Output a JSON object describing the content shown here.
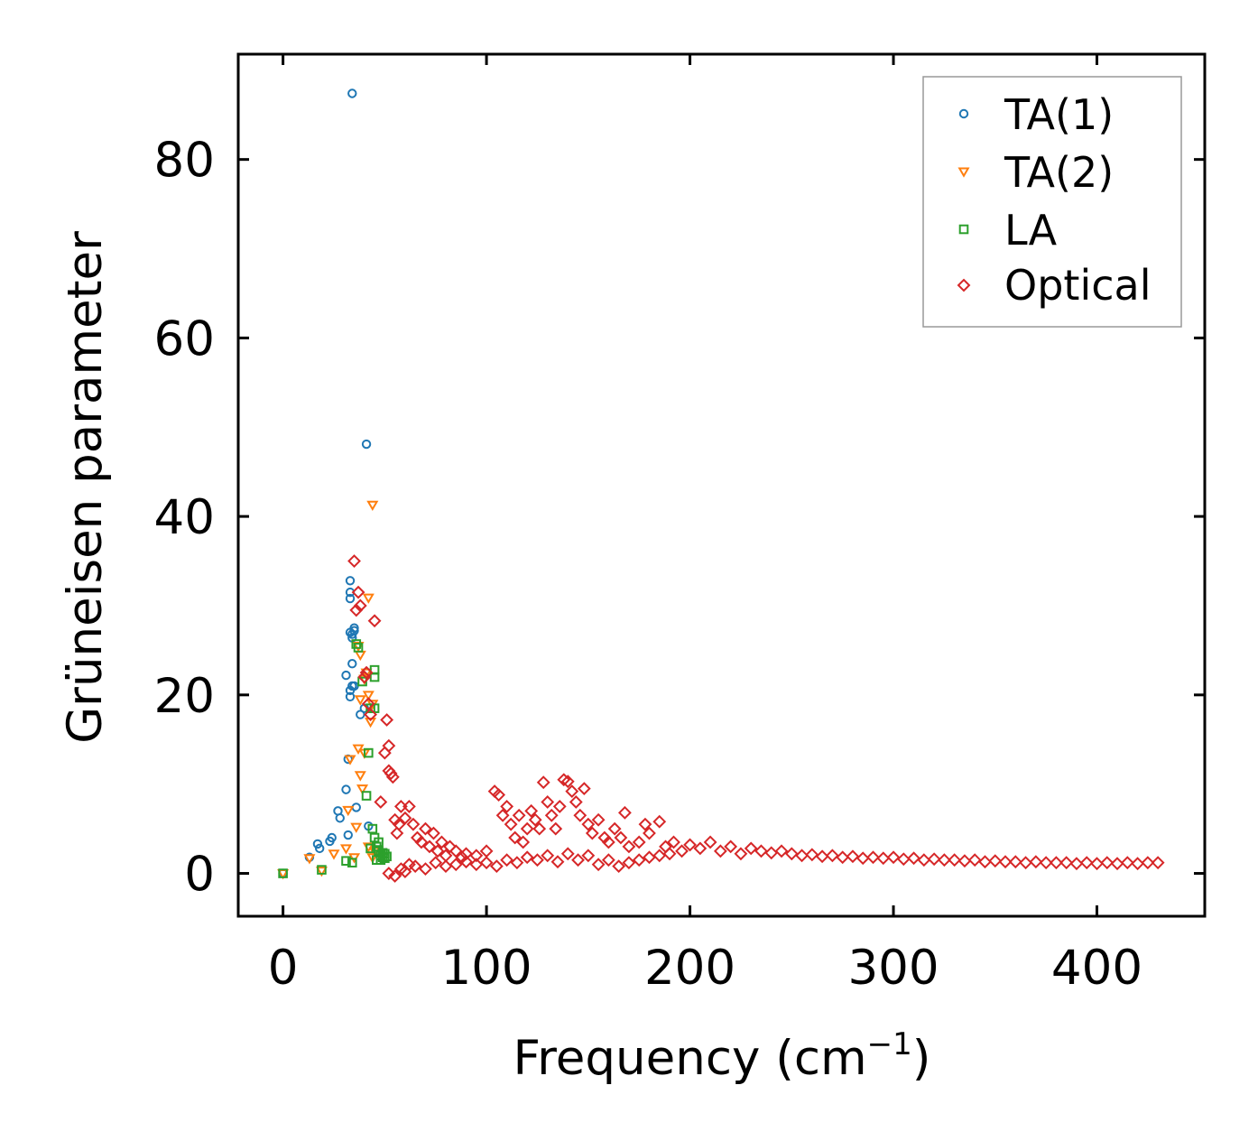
{
  "chart_data": {
    "type": "scatter",
    "title": "",
    "xlabel": "Frequency (cm",
    "xlabel_sup": "−1",
    "xlabel_close": ")",
    "ylabel": "Grüneisen parameter",
    "xlim": [
      -22,
      453
    ],
    "ylim": [
      -4.8,
      91.8
    ],
    "xticks": [
      0,
      100,
      200,
      300,
      400
    ],
    "yticks": [
      0,
      20,
      40,
      60,
      80
    ],
    "xtick_labels": [
      "0",
      "100",
      "200",
      "300",
      "400"
    ],
    "ytick_labels": [
      "0",
      "20",
      "40",
      "60",
      "80"
    ],
    "legend_position": "top-right",
    "legend": [
      "TA(1)",
      "TA(2)",
      "LA",
      "Optical"
    ],
    "series": [
      {
        "name": "TA(1)",
        "marker": "circle",
        "color": "#1f77b4",
        "points": [
          [
            0,
            0
          ],
          [
            13,
            1.8
          ],
          [
            17,
            3.3
          ],
          [
            18,
            2.8
          ],
          [
            23,
            3.6
          ],
          [
            24,
            4
          ],
          [
            27,
            7
          ],
          [
            28,
            6.2
          ],
          [
            31,
            9.4
          ],
          [
            32,
            4.3
          ],
          [
            32,
            12.8
          ],
          [
            31,
            22.2
          ],
          [
            33,
            19.8
          ],
          [
            33,
            20.5
          ],
          [
            34,
            21
          ],
          [
            34,
            23.5
          ],
          [
            33,
            27
          ],
          [
            34,
            26.8
          ],
          [
            35,
            27.2
          ],
          [
            35,
            27.5
          ],
          [
            35,
            21
          ],
          [
            36,
            7.4
          ],
          [
            33,
            30.8
          ],
          [
            33,
            31.5
          ],
          [
            33,
            32.8
          ],
          [
            34,
            87.4
          ],
          [
            41,
            48.1
          ],
          [
            38,
            17.8
          ],
          [
            40,
            18.5
          ],
          [
            42,
            5.3
          ],
          [
            34,
            26.4
          ]
        ]
      },
      {
        "name": "TA(2)",
        "marker": "triangle",
        "color": "#ff7f0e",
        "points": [
          [
            0,
            0
          ],
          [
            13,
            1.7
          ],
          [
            19,
            0.3
          ],
          [
            25,
            2.2
          ],
          [
            31,
            2.8
          ],
          [
            32,
            7.1
          ],
          [
            33,
            12.8
          ],
          [
            35,
            1.8
          ],
          [
            36,
            5.2
          ],
          [
            37,
            14
          ],
          [
            38,
            11
          ],
          [
            39,
            9.5
          ],
          [
            40,
            13.5
          ],
          [
            38,
            19.5
          ],
          [
            40,
            21.8
          ],
          [
            41,
            22.5
          ],
          [
            42,
            20
          ],
          [
            43,
            17
          ],
          [
            44,
            19
          ],
          [
            44,
            41.3
          ],
          [
            42,
            30.9
          ],
          [
            37,
            25.5
          ],
          [
            38,
            24.5
          ],
          [
            42,
            3
          ],
          [
            44,
            1.8
          ],
          [
            45,
            2.5
          ]
        ]
      },
      {
        "name": "LA",
        "marker": "square",
        "color": "#2ca02c",
        "points": [
          [
            0,
            0
          ],
          [
            19,
            0.4
          ],
          [
            31,
            1.4
          ],
          [
            34,
            1.2
          ],
          [
            36,
            25.7
          ],
          [
            37,
            25.3
          ],
          [
            39,
            21.5
          ],
          [
            41,
            8.7
          ],
          [
            42,
            13.5
          ],
          [
            43,
            18.5
          ],
          [
            45,
            22.8
          ],
          [
            45,
            22
          ],
          [
            45,
            18.5
          ],
          [
            44,
            5
          ],
          [
            45,
            4
          ],
          [
            46,
            3
          ],
          [
            46,
            1.5
          ],
          [
            47,
            2.5
          ],
          [
            47,
            3.5
          ],
          [
            48,
            2
          ],
          [
            48,
            1.5
          ],
          [
            49,
            1.8
          ],
          [
            49,
            2.3
          ],
          [
            50,
            2.2
          ],
          [
            50,
            1.7
          ],
          [
            51,
            1.9
          ],
          [
            43,
            2.8
          ]
        ]
      },
      {
        "name": "Optical",
        "marker": "diamond",
        "color": "#d62728",
        "points": [
          [
            35,
            35
          ],
          [
            36,
            29.5
          ],
          [
            37,
            31.5
          ],
          [
            38,
            30
          ],
          [
            40,
            22
          ],
          [
            41,
            22.5
          ],
          [
            42,
            19
          ],
          [
            43,
            17.8
          ],
          [
            45,
            28.3
          ],
          [
            48,
            8
          ],
          [
            50,
            13.5
          ],
          [
            51,
            17.2
          ],
          [
            52,
            14.3
          ],
          [
            52,
            11.5
          ],
          [
            53,
            11.2
          ],
          [
            54,
            10.8
          ],
          [
            55,
            6
          ],
          [
            56,
            4.5
          ],
          [
            57,
            5.5
          ],
          [
            58,
            7.5
          ],
          [
            60,
            6.2
          ],
          [
            62,
            7.5
          ],
          [
            64,
            5.5
          ],
          [
            66,
            4
          ],
          [
            68,
            3.5
          ],
          [
            70,
            5
          ],
          [
            72,
            3
          ],
          [
            74,
            4.5
          ],
          [
            76,
            2.5
          ],
          [
            78,
            3.5
          ],
          [
            80,
            2
          ],
          [
            82,
            3
          ],
          [
            85,
            2.5
          ],
          [
            88,
            1.8
          ],
          [
            90,
            2.2
          ],
          [
            95,
            2
          ],
          [
            100,
            2.5
          ],
          [
            104,
            9.2
          ],
          [
            106,
            8.8
          ],
          [
            108,
            6.5
          ],
          [
            110,
            7.5
          ],
          [
            112,
            5.5
          ],
          [
            114,
            4
          ],
          [
            116,
            6.5
          ],
          [
            118,
            3.5
          ],
          [
            120,
            5
          ],
          [
            122,
            7
          ],
          [
            124,
            6
          ],
          [
            126,
            5
          ],
          [
            128,
            10.2
          ],
          [
            130,
            8
          ],
          [
            132,
            6.5
          ],
          [
            134,
            5
          ],
          [
            136,
            7.5
          ],
          [
            138,
            10.5
          ],
          [
            140,
            10.3
          ],
          [
            142,
            9.2
          ],
          [
            144,
            8
          ],
          [
            146,
            6.5
          ],
          [
            148,
            9.5
          ],
          [
            150,
            5.5
          ],
          [
            152,
            4.5
          ],
          [
            155,
            6
          ],
          [
            158,
            4
          ],
          [
            160,
            3.5
          ],
          [
            163,
            5
          ],
          [
            166,
            4
          ],
          [
            168,
            6.8
          ],
          [
            170,
            3
          ],
          [
            175,
            3.5
          ],
          [
            178,
            5.5
          ],
          [
            180,
            4.5
          ],
          [
            185,
            5.8
          ],
          [
            188,
            3
          ],
          [
            192,
            3.5
          ],
          [
            196,
            2.5
          ],
          [
            200,
            3.2
          ],
          [
            205,
            2.8
          ],
          [
            210,
            3.5
          ],
          [
            215,
            2.5
          ],
          [
            220,
            3
          ],
          [
            225,
            2.2
          ],
          [
            230,
            2.8
          ],
          [
            235,
            2.5
          ],
          [
            240,
            2.3
          ],
          [
            245,
            2.5
          ],
          [
            250,
            2.2
          ],
          [
            255,
            2
          ],
          [
            260,
            2.1
          ],
          [
            265,
            1.9
          ],
          [
            270,
            2
          ],
          [
            275,
            1.8
          ],
          [
            280,
            1.9
          ],
          [
            285,
            1.7
          ],
          [
            290,
            1.8
          ],
          [
            295,
            1.7
          ],
          [
            300,
            1.8
          ],
          [
            305,
            1.6
          ],
          [
            310,
            1.7
          ],
          [
            315,
            1.5
          ],
          [
            320,
            1.6
          ],
          [
            325,
            1.5
          ],
          [
            330,
            1.5
          ],
          [
            335,
            1.4
          ],
          [
            340,
            1.5
          ],
          [
            345,
            1.3
          ],
          [
            350,
            1.4
          ],
          [
            355,
            1.3
          ],
          [
            360,
            1.3
          ],
          [
            365,
            1.2
          ],
          [
            370,
            1.3
          ],
          [
            375,
            1.2
          ],
          [
            380,
            1.2
          ],
          [
            385,
            1.2
          ],
          [
            390,
            1.1
          ],
          [
            395,
            1.2
          ],
          [
            400,
            1.1
          ],
          [
            405,
            1.2
          ],
          [
            410,
            1.1
          ],
          [
            415,
            1.2
          ],
          [
            420,
            1.1
          ],
          [
            425,
            1.2
          ],
          [
            430,
            1.2
          ],
          [
            52,
            0
          ],
          [
            55,
            -0.3
          ],
          [
            58,
            0.5
          ],
          [
            60,
            0.2
          ],
          [
            62,
            1
          ],
          [
            65,
            0.8
          ],
          [
            70,
            0.5
          ],
          [
            75,
            1.2
          ],
          [
            80,
            0.8
          ],
          [
            85,
            1
          ],
          [
            90,
            1.3
          ],
          [
            95,
            1
          ],
          [
            100,
            1.2
          ],
          [
            105,
            0.8
          ],
          [
            110,
            1.5
          ],
          [
            115,
            1.2
          ],
          [
            120,
            1.8
          ],
          [
            125,
            1.5
          ],
          [
            130,
            2
          ],
          [
            135,
            1.3
          ],
          [
            140,
            2.2
          ],
          [
            145,
            1.5
          ],
          [
            150,
            2
          ],
          [
            155,
            1
          ],
          [
            160,
            1.5
          ],
          [
            165,
            0.8
          ],
          [
            170,
            1.2
          ],
          [
            175,
            1.5
          ],
          [
            180,
            1.8
          ],
          [
            185,
            2
          ],
          [
            190,
            2.2
          ]
        ]
      }
    ]
  }
}
